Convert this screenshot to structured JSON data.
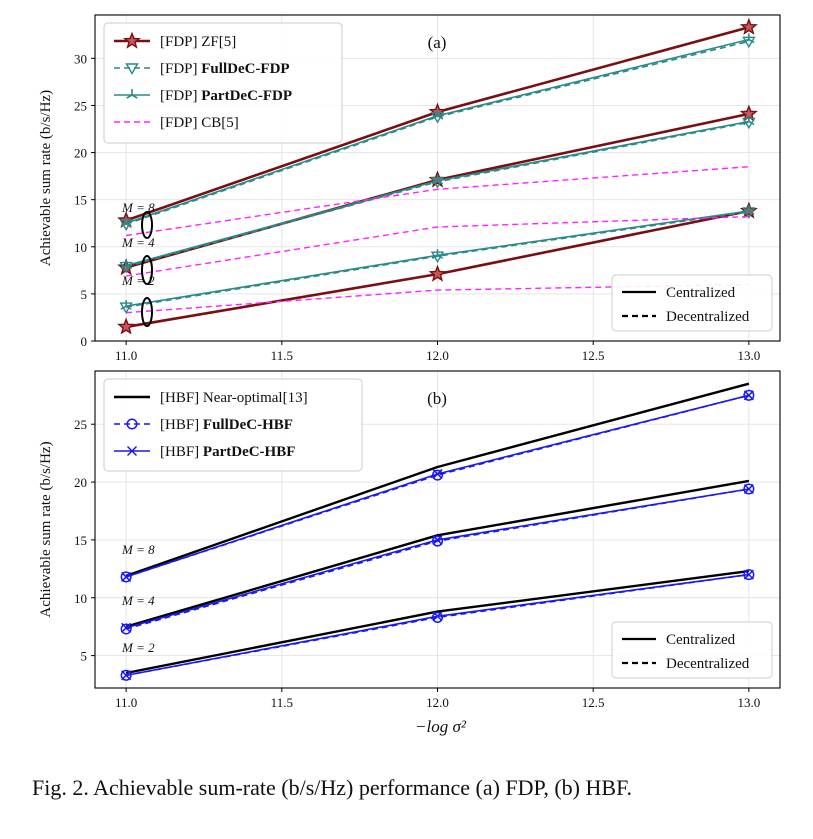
{
  "caption": "Fig. 2.  Achievable sum-rate (b/s/Hz) performance (a) FDP, (b) HBF.",
  "styles": {
    "ZF": {
      "color": "#7a0f12",
      "marker": "star",
      "width": 2.6,
      "dash": false
    },
    "Full": {
      "color": "#2a8a8a",
      "marker": "tri",
      "width": 1.6,
      "dash": true
    },
    "Part": {
      "color": "#2a8a8a",
      "marker": "star3",
      "width": 1.6,
      "dash": false
    },
    "CB": {
      "color": "#ff22ff",
      "marker": "none",
      "width": 1.4,
      "dash": true
    },
    "Near": {
      "color": "#000000",
      "marker": "none",
      "width": 2.4,
      "dash": false
    },
    "HBFFull": {
      "color": "#1a1aee",
      "marker": "circle",
      "width": 1.6,
      "dash": true
    },
    "HBFPart": {
      "color": "#1a1aee",
      "marker": "x",
      "width": 1.6,
      "dash": false
    }
  },
  "chart_data": [
    {
      "type": "line",
      "panel_label": "(a)",
      "xlabel": "",
      "ylabel": "Achievable sum rate (b/s/Hz)",
      "x": [
        11.0,
        12.0,
        13.0
      ],
      "xlim": [
        10.9,
        13.1
      ],
      "ylim": [
        0,
        34.6
      ],
      "xticks": [
        "11.0",
        "11.5",
        "12.0",
        "12.5",
        "13.0"
      ],
      "yticks": [
        "0",
        "5",
        "10",
        "15",
        "20",
        "25",
        "30"
      ],
      "grid": true,
      "legend": [
        {
          "prefix": "[FDP] ",
          "name": "ZF[5]",
          "bold": false,
          "style": "ZF"
        },
        {
          "prefix": "[FDP] ",
          "name": "FullDeC-FDP",
          "bold": true,
          "style": "Full"
        },
        {
          "prefix": "[FDP] ",
          "name": "PartDeC-FDP",
          "bold": true,
          "style": "Part"
        },
        {
          "prefix": "[FDP] ",
          "name": "CB[5]",
          "bold": false,
          "style": "CB"
        }
      ],
      "legend2": [
        {
          "name": "Centralized",
          "dash": false
        },
        {
          "name": "Decentralized",
          "dash": true
        }
      ],
      "m_labels": [
        "M = 8",
        "M = 4",
        "M = 2"
      ],
      "series": [
        {
          "style": "ZF",
          "M": 8,
          "values": [
            12.8,
            24.3,
            33.3
          ]
        },
        {
          "style": "ZF",
          "M": 4,
          "values": [
            7.8,
            17.1,
            24.1
          ]
        },
        {
          "style": "ZF",
          "M": 2,
          "values": [
            1.5,
            7.1,
            13.8
          ]
        },
        {
          "style": "Full",
          "M": 8,
          "values": [
            12.4,
            23.8,
            31.8
          ]
        },
        {
          "style": "Full",
          "M": 4,
          "values": [
            7.9,
            16.9,
            23.2
          ]
        },
        {
          "style": "Full",
          "M": 2,
          "values": [
            3.6,
            9.0,
            13.7
          ]
        },
        {
          "style": "Part",
          "M": 8,
          "values": [
            12.5,
            23.9,
            32.0
          ]
        },
        {
          "style": "Part",
          "M": 4,
          "values": [
            8.0,
            17.0,
            23.3
          ]
        },
        {
          "style": "Part",
          "M": 2,
          "values": [
            3.7,
            9.1,
            13.8
          ]
        },
        {
          "style": "CB",
          "M": 8,
          "values": [
            11.2,
            16.1,
            18.5
          ]
        },
        {
          "style": "CB",
          "M": 4,
          "values": [
            6.9,
            12.1,
            13.2
          ]
        },
        {
          "style": "CB",
          "M": 2,
          "values": [
            3.0,
            5.4,
            6.0
          ]
        }
      ]
    },
    {
      "type": "line",
      "panel_label": "(b)",
      "xlabel": "−log σ²",
      "ylabel": "Achievable sum rate (b/s/Hz)",
      "x": [
        11.0,
        12.0,
        13.0
      ],
      "xlim": [
        10.9,
        13.1
      ],
      "ylim": [
        2.2,
        29.6
      ],
      "xticks": [
        "11.0",
        "11.5",
        "12.0",
        "12.5",
        "13.0"
      ],
      "yticks": [
        "5",
        "10",
        "15",
        "20",
        "25"
      ],
      "grid": true,
      "legend": [
        {
          "prefix": "[HBF] ",
          "name": "Near-optimal[13]",
          "bold": false,
          "style": "Near"
        },
        {
          "prefix": "[HBF] ",
          "name": "FullDeC-HBF",
          "bold": true,
          "style": "HBFFull"
        },
        {
          "prefix": "[HBF] ",
          "name": "PartDeC-HBF",
          "bold": true,
          "style": "HBFPart"
        }
      ],
      "legend2": [
        {
          "name": "Centralized",
          "dash": false
        },
        {
          "name": "Decentralized",
          "dash": true
        }
      ],
      "m_labels": [
        "M =  8",
        "M = 4",
        "M = 2"
      ],
      "series": [
        {
          "style": "Near",
          "M": 8,
          "values": [
            11.9,
            21.3,
            28.5
          ]
        },
        {
          "style": "Near",
          "M": 4,
          "values": [
            7.5,
            15.4,
            20.1
          ]
        },
        {
          "style": "Near",
          "M": 2,
          "values": [
            3.5,
            8.8,
            12.3
          ]
        },
        {
          "style": "HBFFull",
          "M": 8,
          "values": [
            11.8,
            20.6,
            27.5
          ]
        },
        {
          "style": "HBFFull",
          "M": 4,
          "values": [
            7.3,
            14.9,
            19.4
          ]
        },
        {
          "style": "HBFFull",
          "M": 2,
          "values": [
            3.3,
            8.3,
            12.0
          ]
        },
        {
          "style": "HBFPart",
          "M": 8,
          "values": [
            11.8,
            20.7,
            27.5
          ]
        },
        {
          "style": "HBFPart",
          "M": 4,
          "values": [
            7.4,
            15.0,
            19.4
          ]
        },
        {
          "style": "HBFPart",
          "M": 2,
          "values": [
            3.3,
            8.4,
            12.0
          ]
        }
      ]
    }
  ]
}
